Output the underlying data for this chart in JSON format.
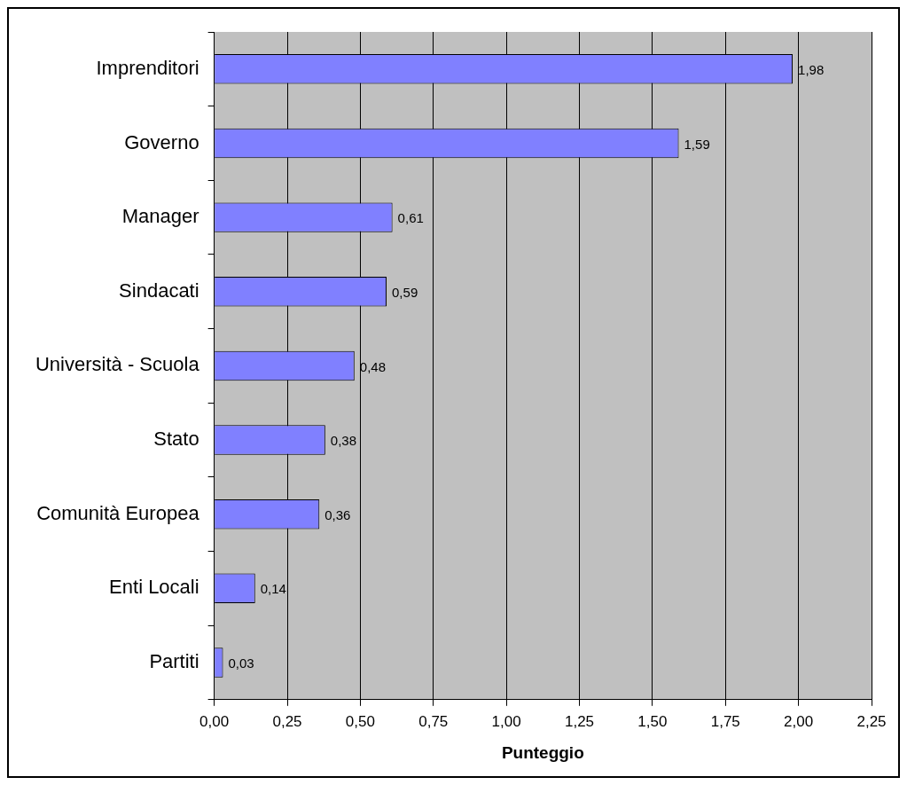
{
  "chart_data": {
    "type": "bar",
    "orientation": "horizontal",
    "xlabel": "Punteggio",
    "categories": [
      "Imprenditori",
      "Governo",
      "Manager",
      "Sindacati",
      "Università - Scuola",
      "Stato",
      "Comunità Europea",
      "Enti Locali",
      "Partiti"
    ],
    "values": [
      1.98,
      1.59,
      0.61,
      0.59,
      0.48,
      0.38,
      0.36,
      0.14,
      0.03
    ],
    "value_labels": [
      "1,98",
      "1,59",
      "0,61",
      "0,59",
      "0,48",
      "0,38",
      "0,36",
      "0,14",
      "0,03"
    ],
    "color": "#8080ff",
    "xlim": [
      0,
      2.25
    ],
    "xticks": [
      {
        "value": 0,
        "label": "0,00"
      },
      {
        "value": 0.25,
        "label": "0,25"
      },
      {
        "value": 0.5,
        "label": "0,50"
      },
      {
        "value": 0.75,
        "label": "0,75"
      },
      {
        "value": 1,
        "label": "1,00"
      },
      {
        "value": 1.25,
        "label": "1,25"
      },
      {
        "value": 1.5,
        "label": "1,50"
      },
      {
        "value": 1.75,
        "label": "1,75"
      },
      {
        "value": 2,
        "label": "2,00"
      },
      {
        "value": 2.25,
        "label": "2,25"
      }
    ],
    "grid": "x",
    "legend": false
  }
}
